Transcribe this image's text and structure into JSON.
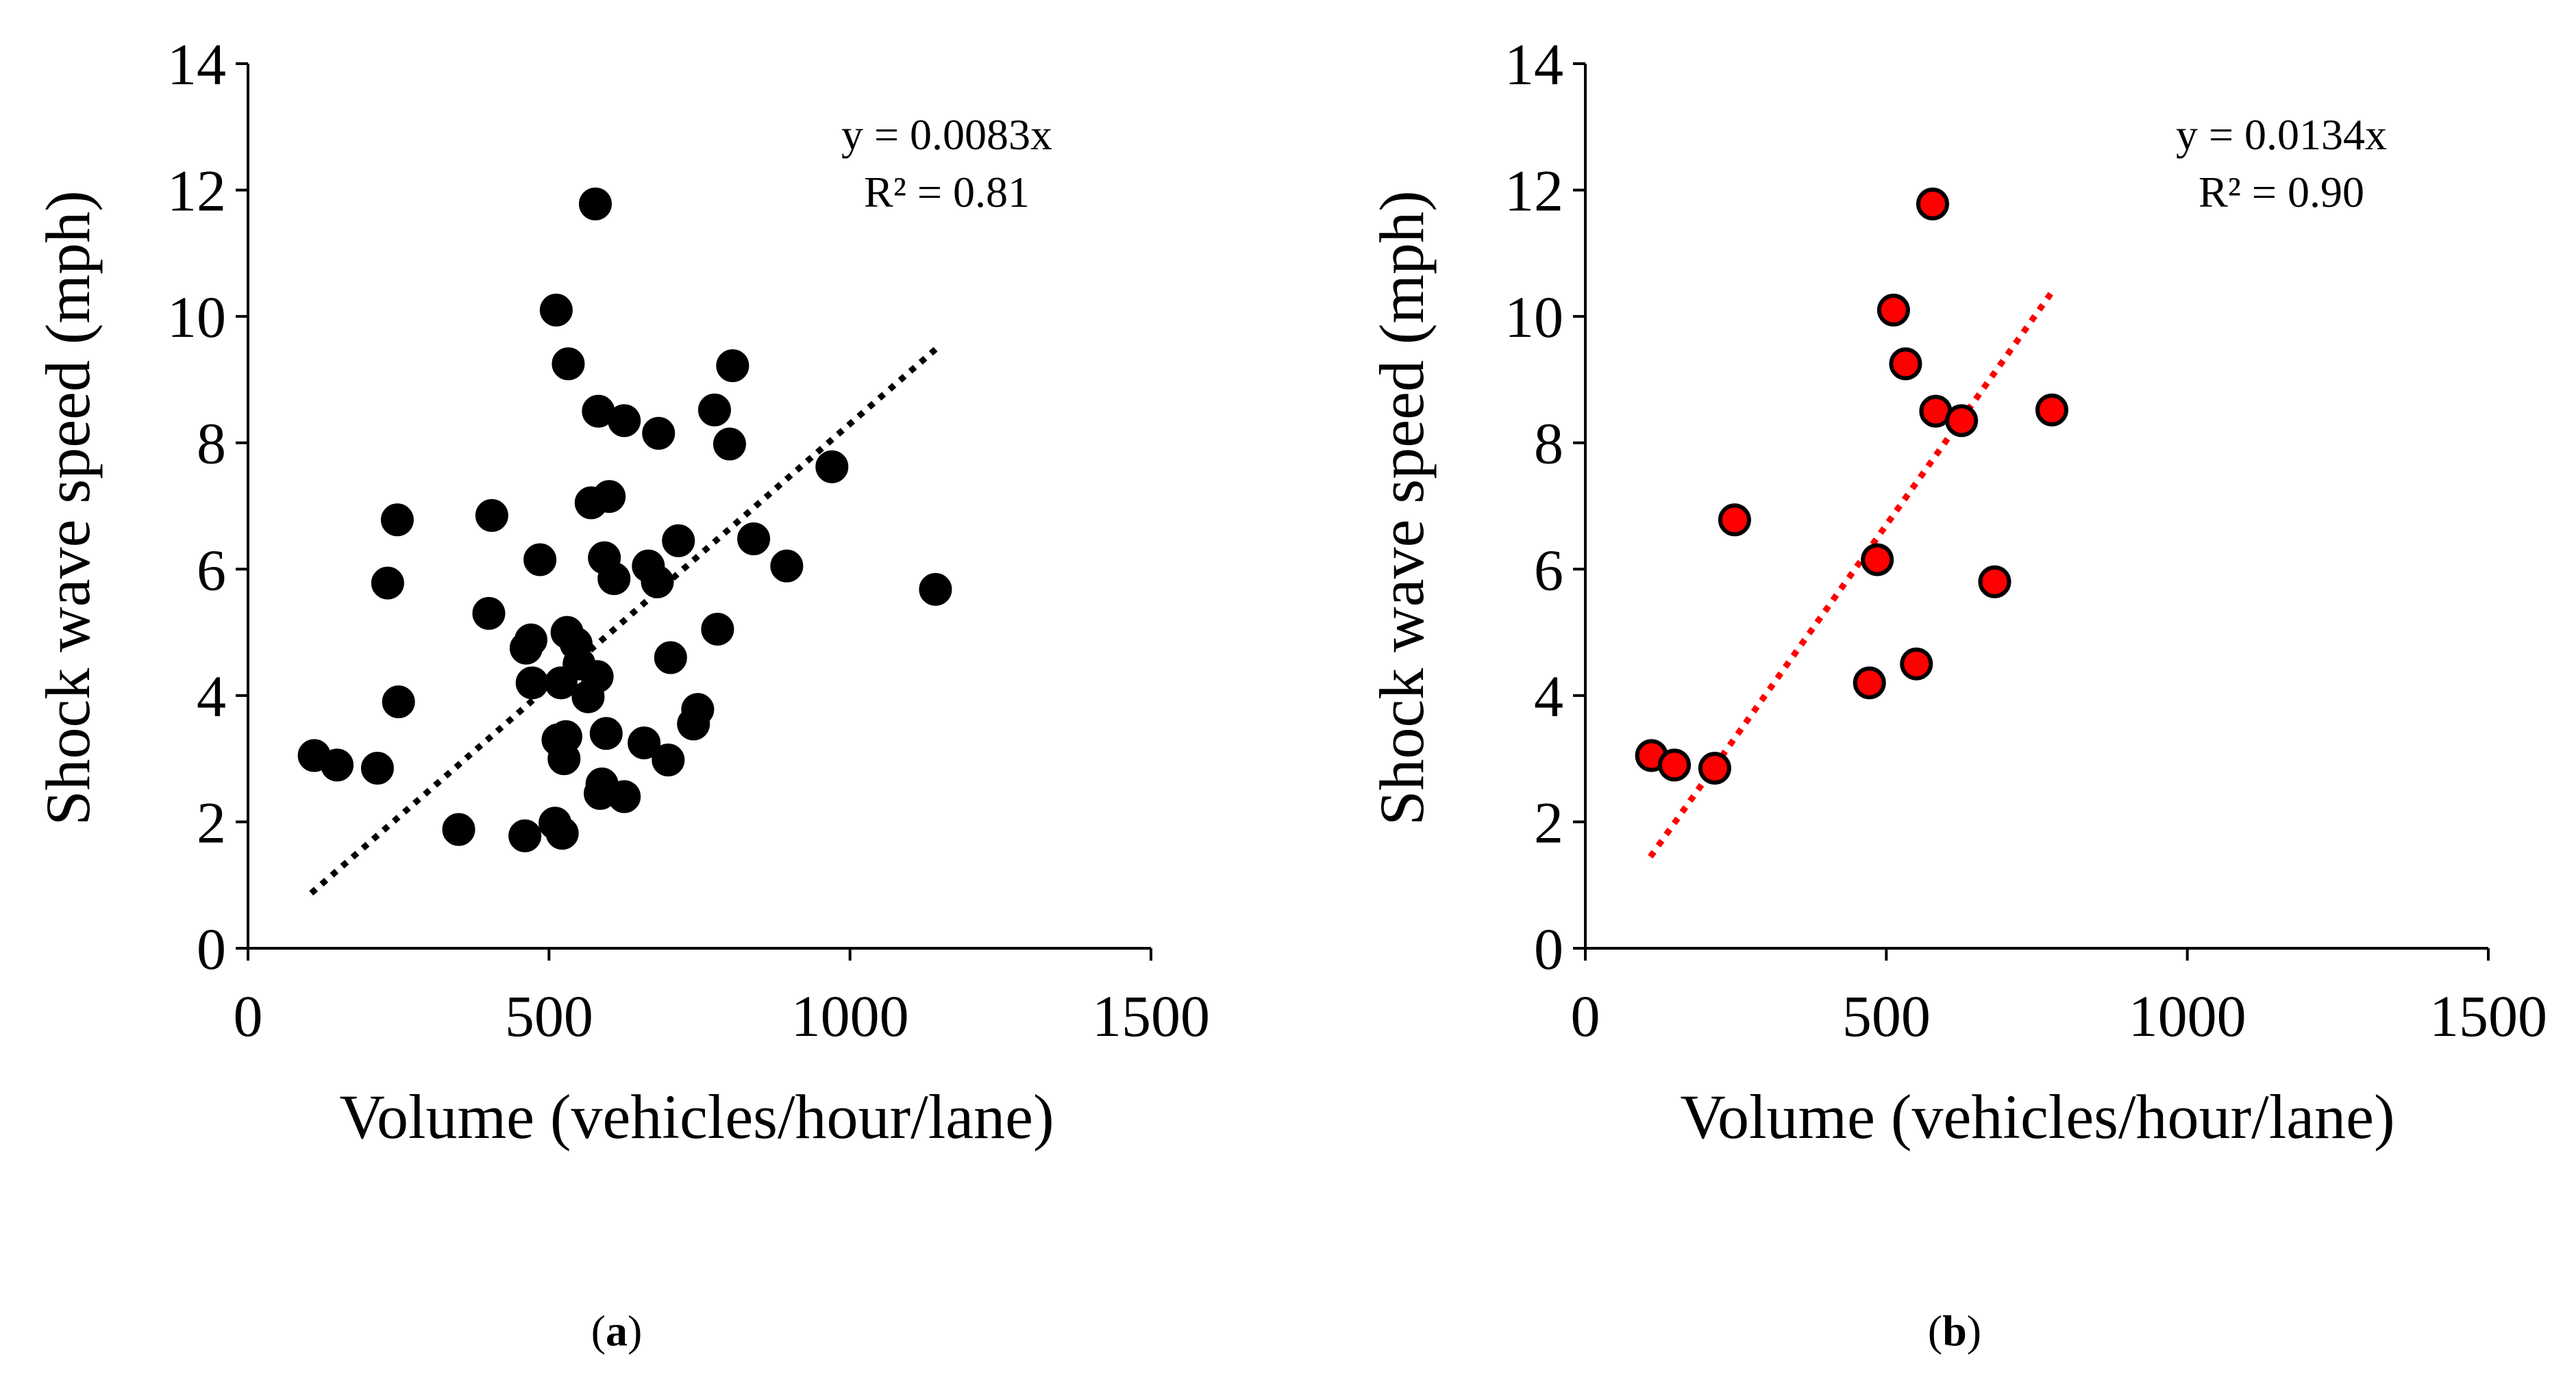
{
  "chart_data": [
    {
      "type": "scatter",
      "panel_label": "a",
      "xlabel": "Volume (vehicles/hour/lane)",
      "ylabel": "Shock wave speed (mph)",
      "xlim": [
        0,
        1500
      ],
      "ylim": [
        0,
        14
      ],
      "x_ticks": [
        0,
        500,
        1000,
        1500
      ],
      "y_ticks": [
        0,
        2,
        4,
        6,
        8,
        10,
        12,
        14
      ],
      "grid": false,
      "marker_color": "#000000",
      "marker_edge": "#000000",
      "trendline": {
        "equation": "y = 0.0083x",
        "r_squared": "R² = 0.81",
        "slope": 0.0083,
        "x_range": [
          105,
          1145
        ],
        "color": "#000000",
        "style": "dotted"
      },
      "points": [
        {
          "x": 110,
          "y": 3.05
        },
        {
          "x": 148,
          "y": 2.9
        },
        {
          "x": 215,
          "y": 2.85
        },
        {
          "x": 232,
          "y": 5.78
        },
        {
          "x": 248,
          "y": 6.78
        },
        {
          "x": 250,
          "y": 3.9
        },
        {
          "x": 350,
          "y": 1.88
        },
        {
          "x": 400,
          "y": 5.3
        },
        {
          "x": 405,
          "y": 6.85
        },
        {
          "x": 460,
          "y": 1.78
        },
        {
          "x": 462,
          "y": 4.75
        },
        {
          "x": 470,
          "y": 4.88
        },
        {
          "x": 472,
          "y": 4.2
        },
        {
          "x": 485,
          "y": 6.15
        },
        {
          "x": 510,
          "y": 1.98
        },
        {
          "x": 512,
          "y": 10.1
        },
        {
          "x": 515,
          "y": 3.3
        },
        {
          "x": 520,
          "y": 4.2
        },
        {
          "x": 522,
          "y": 1.82
        },
        {
          "x": 525,
          "y": 3.0
        },
        {
          "x": 528,
          "y": 3.35
        },
        {
          "x": 530,
          "y": 5.0
        },
        {
          "x": 532,
          "y": 9.25
        },
        {
          "x": 545,
          "y": 4.82
        },
        {
          "x": 550,
          "y": 4.5
        },
        {
          "x": 565,
          "y": 3.98
        },
        {
          "x": 570,
          "y": 7.05
        },
        {
          "x": 577,
          "y": 11.78
        },
        {
          "x": 580,
          "y": 4.3
        },
        {
          "x": 582,
          "y": 8.5
        },
        {
          "x": 585,
          "y": 2.45
        },
        {
          "x": 588,
          "y": 2.6
        },
        {
          "x": 592,
          "y": 6.18
        },
        {
          "x": 595,
          "y": 3.4
        },
        {
          "x": 600,
          "y": 7.15
        },
        {
          "x": 608,
          "y": 5.85
        },
        {
          "x": 625,
          "y": 2.4
        },
        {
          "x": 625,
          "y": 8.35
        },
        {
          "x": 658,
          "y": 3.25
        },
        {
          "x": 665,
          "y": 6.05
        },
        {
          "x": 680,
          "y": 5.8
        },
        {
          "x": 682,
          "y": 8.15
        },
        {
          "x": 698,
          "y": 2.98
        },
        {
          "x": 702,
          "y": 4.6
        },
        {
          "x": 715,
          "y": 6.45
        },
        {
          "x": 740,
          "y": 3.55
        },
        {
          "x": 747,
          "y": 3.78
        },
        {
          "x": 775,
          "y": 8.52
        },
        {
          "x": 780,
          "y": 5.05
        },
        {
          "x": 800,
          "y": 7.98
        },
        {
          "x": 805,
          "y": 9.22
        },
        {
          "x": 840,
          "y": 6.48
        },
        {
          "x": 895,
          "y": 6.05
        },
        {
          "x": 970,
          "y": 7.62
        },
        {
          "x": 1142,
          "y": 5.68
        }
      ]
    },
    {
      "type": "scatter",
      "panel_label": "b",
      "xlabel": "Volume (vehicles/hour/lane)",
      "ylabel": "Shock wave speed (mph)",
      "xlim": [
        0,
        1500
      ],
      "ylim": [
        0,
        14
      ],
      "x_ticks": [
        0,
        500,
        1000,
        1500
      ],
      "y_ticks": [
        0,
        2,
        4,
        6,
        8,
        10,
        12,
        14
      ],
      "grid": false,
      "marker_color": "#ff0000",
      "marker_edge": "#000000",
      "trendline": {
        "equation": "y = 0.0134x",
        "r_squared": "R² = 0.90",
        "slope": 0.0134,
        "x_range": [
          108,
          778
        ],
        "color": "#ff0000",
        "style": "dotted"
      },
      "points": [
        {
          "x": 110,
          "y": 3.05
        },
        {
          "x": 148,
          "y": 2.9
        },
        {
          "x": 215,
          "y": 2.85
        },
        {
          "x": 248,
          "y": 6.78
        },
        {
          "x": 472,
          "y": 4.2
        },
        {
          "x": 485,
          "y": 6.15
        },
        {
          "x": 512,
          "y": 10.1
        },
        {
          "x": 532,
          "y": 9.25
        },
        {
          "x": 550,
          "y": 4.5
        },
        {
          "x": 577,
          "y": 11.78
        },
        {
          "x": 582,
          "y": 8.5
        },
        {
          "x": 625,
          "y": 8.35
        },
        {
          "x": 680,
          "y": 5.8
        },
        {
          "x": 775,
          "y": 8.52
        }
      ]
    }
  ]
}
